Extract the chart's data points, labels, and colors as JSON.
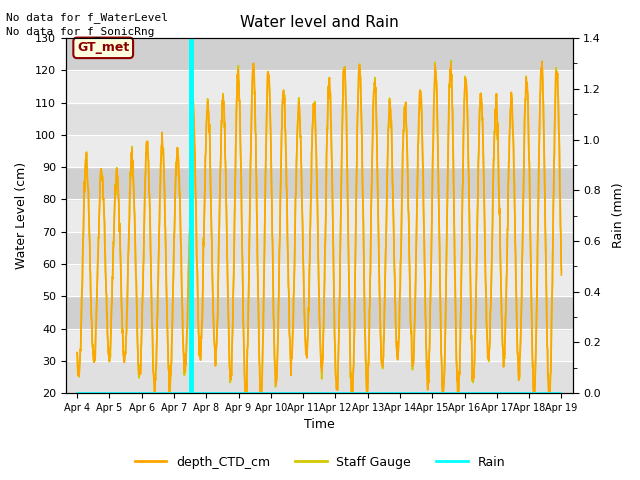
{
  "title": "Water level and Rain",
  "xlabel": "Time",
  "ylabel_left": "Water Level (cm)",
  "ylabel_right": "Rain (mm)",
  "annotation_line1": "No data for f_WaterLevel",
  "annotation_line2": "No data for f_SonicRng",
  "gt_met_label": "GT_met",
  "ylim_left": [
    20,
    130
  ],
  "ylim_right": [
    0.0,
    1.4
  ],
  "yticks_left": [
    20,
    30,
    40,
    50,
    60,
    70,
    80,
    90,
    100,
    110,
    120,
    130
  ],
  "yticks_right_labeled": [
    0.0,
    0.2,
    0.4,
    0.6,
    0.8,
    1.0,
    1.2,
    1.4
  ],
  "yticks_right_minor": [
    0.1,
    0.3,
    0.5,
    0.7,
    0.9,
    1.1,
    1.3
  ],
  "xtick_labels": [
    "Apr 4",
    "Apr 5",
    "Apr 6",
    "Apr 7",
    "Apr 8",
    "Apr 9",
    "Apr 10",
    "Apr 11",
    "Apr 12",
    "Apr 13",
    "Apr 14",
    "Apr 15",
    "Apr 16",
    "Apr 17",
    "Apr 18",
    "Apr 19"
  ],
  "xtick_positions": [
    4,
    5,
    6,
    7,
    8,
    9,
    10,
    11,
    12,
    13,
    14,
    15,
    16,
    17,
    18,
    19
  ],
  "xlim": [
    3.65,
    19.35
  ],
  "cyan_line_day": 7.52,
  "background_color": "#ffffff",
  "plot_bg_color": "#ebebeb",
  "band_light": "#e0e0e0",
  "band_dark": "#d0d0d0",
  "depth_color": "#FFA500",
  "staff_color": "#d4c800",
  "rain_color": "#00FFFF",
  "legend_labels": [
    "depth_CTD_cm",
    "Staff Gauge",
    "Rain"
  ],
  "figsize": [
    6.4,
    4.8
  ],
  "dpi": 100
}
